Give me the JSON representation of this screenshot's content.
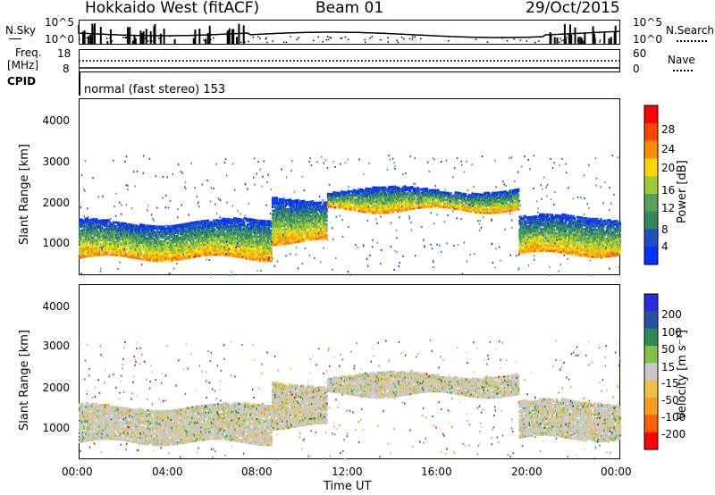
{
  "header": {
    "station": "Hokkaido West (fitACF)",
    "beam": "Beam 01",
    "date": "29/Oct/2015"
  },
  "noise_panel": {
    "left_label": "N.Sky",
    "right_label": "N.Search",
    "left_ticks": [
      "10^5",
      "10^0"
    ],
    "right_ticks": [
      "10^5",
      "10^0"
    ]
  },
  "freq_panel": {
    "left_label_line1": "Freq.",
    "left_label_line2": "[MHz]",
    "left_ticks": [
      "18",
      "8"
    ],
    "right_label": "Nave",
    "right_ticks": [
      "60",
      "0"
    ]
  },
  "cpid": {
    "label": "CPID",
    "text": "normal (fast stereo) 153"
  },
  "power_panel": {
    "ylabel": "Slant Range [km]",
    "yticks": [
      "4000",
      "3000",
      "2000",
      "1000"
    ],
    "colorbar_label": "Power [dB]",
    "colorbar_ticks": [
      "28",
      "24",
      "20",
      "16",
      "12",
      "8",
      "4"
    ],
    "colors": [
      "#0033ff",
      "#1f4fc4",
      "#2e8b57",
      "#5aa05a",
      "#9acd32",
      "#ffd700",
      "#ff8c00",
      "#ff4500",
      "#ff0000"
    ]
  },
  "velocity_panel": {
    "ylabel": "Slant Range [km]",
    "yticks": [
      "4000",
      "3000",
      "2000",
      "1000"
    ],
    "colorbar_label": "Velocity [m s⁻¹]",
    "colorbar_ticks": [
      "200",
      "100",
      "50",
      "15",
      "-15",
      "-50",
      "-100",
      "-200"
    ],
    "colors": [
      "#2a2ae0",
      "#2a4fa8",
      "#2e8b57",
      "#7fc341",
      "#c8c8c8",
      "#f0c040",
      "#ff9a20",
      "#ff6000",
      "#ff0000"
    ]
  },
  "xaxis": {
    "ticks": [
      "00:00",
      "04:00",
      "08:00",
      "12:00",
      "16:00",
      "20:00",
      "00:00"
    ],
    "label": "Time UT"
  },
  "chart_data": [
    {
      "type": "heatmap",
      "title": "Hokkaido West (fitACF) Beam 01 29/Oct/2015",
      "xlabel": "Time UT",
      "ylabel": "Slant Range [km]",
      "xlim": [
        "00:00",
        "24:00"
      ],
      "ylim": [
        180,
        4600
      ],
      "colorbar": {
        "label": "Power [dB]",
        "range": [
          0,
          30
        ]
      },
      "bands": [
        {
          "t_start": 0,
          "t_end": 8.5,
          "range_low": 600,
          "range_high": 1500,
          "value": 14
        },
        {
          "t_start": 8.5,
          "t_end": 11,
          "range_low": 1000,
          "range_high": 2100,
          "value": 16
        },
        {
          "t_start": 11,
          "t_end": 19.5,
          "range_low": 1800,
          "range_high": 2300,
          "value": 14
        },
        {
          "t_start": 19.5,
          "t_end": 24,
          "range_low": 700,
          "range_high": 1600,
          "value": 16
        }
      ]
    },
    {
      "type": "heatmap",
      "title": "",
      "xlabel": "Time UT",
      "ylabel": "Slant Range [km]",
      "xlim": [
        "00:00",
        "24:00"
      ],
      "ylim": [
        180,
        4600
      ],
      "colorbar": {
        "label": "Velocity [m s⁻¹]",
        "range": [
          -250,
          250
        ]
      },
      "bands": [
        {
          "t_start": 0,
          "t_end": 8.5,
          "range_low": 600,
          "range_high": 1500,
          "value": 0
        },
        {
          "t_start": 8.5,
          "t_end": 11,
          "range_low": 1000,
          "range_high": 2100,
          "value": -30
        },
        {
          "t_start": 11,
          "t_end": 19.5,
          "range_low": 1800,
          "range_high": 2300,
          "value": 0
        },
        {
          "t_start": 19.5,
          "t_end": 24,
          "range_low": 700,
          "range_high": 1600,
          "value": 10
        }
      ]
    }
  ]
}
